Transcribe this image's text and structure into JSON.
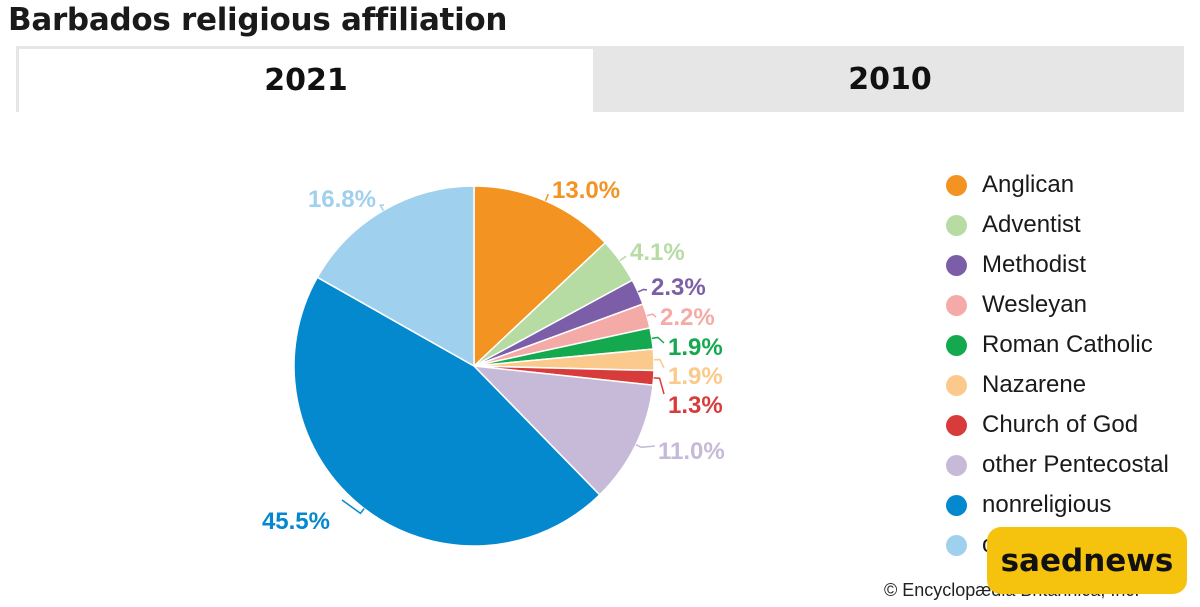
{
  "title": "Barbados religious affiliation",
  "tabs": [
    {
      "label": "2021",
      "active": true
    },
    {
      "label": "2010",
      "active": false
    }
  ],
  "chart_data": {
    "type": "pie",
    "title": "Barbados religious affiliation",
    "legend_position": "right",
    "slices": [
      {
        "label": "Anglican",
        "value": 13.0,
        "display": "13.0%",
        "color": "#f39322"
      },
      {
        "label": "Adventist",
        "value": 4.1,
        "display": "4.1%",
        "color": "#b6dca4"
      },
      {
        "label": "Methodist",
        "value": 2.3,
        "display": "2.3%",
        "color": "#7b5ea7"
      },
      {
        "label": "Wesleyan",
        "value": 2.2,
        "display": "2.2%",
        "color": "#f4aaa6"
      },
      {
        "label": "Roman Catholic",
        "value": 1.9,
        "display": "1.9%",
        "color": "#14a94f"
      },
      {
        "label": "Nazarene",
        "value": 1.9,
        "display": "1.9%",
        "color": "#fbc98b"
      },
      {
        "label": "Church of God",
        "value": 1.3,
        "display": "1.3%",
        "color": "#d83c3a"
      },
      {
        "label": "other Pentecostal",
        "value": 11.0,
        "display": "11.0%",
        "color": "#c6bad8"
      },
      {
        "label": "nonreligious",
        "value": 45.5,
        "display": "45.5%",
        "color": "#0489cf"
      },
      {
        "label": "other",
        "value": 16.8,
        "display": "16.8%",
        "color": "#9fd0ee"
      }
    ]
  },
  "legend": {
    "items": [
      {
        "label": "Anglican",
        "color": "#f39322"
      },
      {
        "label": "Adventist",
        "color": "#b6dca4"
      },
      {
        "label": "Methodist",
        "color": "#7b5ea7"
      },
      {
        "label": "Wesleyan",
        "color": "#f4aaa6"
      },
      {
        "label": "Roman Catholic",
        "color": "#14a94f"
      },
      {
        "label": "Nazarene",
        "color": "#fbc98b"
      },
      {
        "label": "Church of God",
        "color": "#d83c3a"
      },
      {
        "label": "other Pentecostal",
        "color": "#c6bad8"
      },
      {
        "label": "nonreligious",
        "color": "#0489cf"
      },
      {
        "label": "other",
        "color": "#9fd0ee"
      }
    ]
  },
  "copyright": "© Encyclopædia Britannica, Inc.",
  "watermark": "saednews"
}
